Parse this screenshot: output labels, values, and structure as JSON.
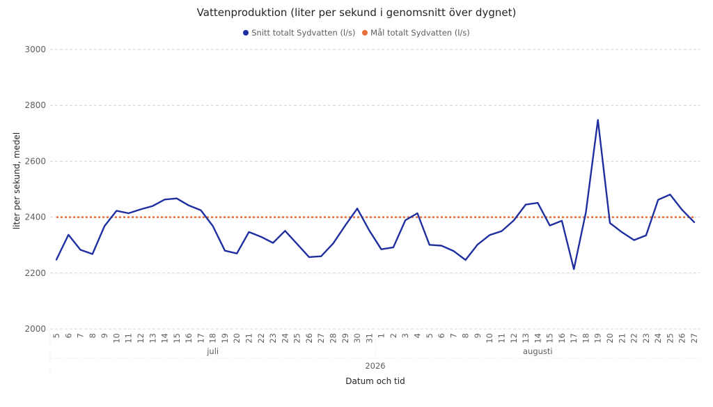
{
  "chart_data": {
    "type": "line",
    "title": "Vattenproduktion (liter per sekund i genomsnitt över dygnet)",
    "xlabel": "Datum och tid",
    "ylabel": "liter per sekund, medel",
    "ylim": [
      2000,
      3000
    ],
    "yticks": [
      "2000",
      "2200",
      "2400",
      "2600",
      "2800",
      "3000"
    ],
    "grid": true,
    "legend_position": "top-center",
    "year_label": "2026",
    "months": [
      {
        "label": "juli",
        "start_index": 0,
        "end_index": 26
      },
      {
        "label": "augusti",
        "start_index": 27,
        "end_index": 53
      }
    ],
    "x": [
      "5",
      "6",
      "7",
      "8",
      "9",
      "10",
      "11",
      "12",
      "13",
      "14",
      "15",
      "16",
      "17",
      "18",
      "19",
      "20",
      "21",
      "22",
      "23",
      "24",
      "25",
      "26",
      "27",
      "28",
      "29",
      "30",
      "31",
      "1",
      "2",
      "3",
      "4",
      "5",
      "6",
      "7",
      "8",
      "9",
      "10",
      "11",
      "12",
      "13",
      "14",
      "15",
      "16",
      "17",
      "18",
      "19",
      "20",
      "21",
      "22",
      "23",
      "24",
      "25",
      "26",
      "27"
    ],
    "series": [
      {
        "name": "Snitt totalt Sydvatten (l/s)",
        "color": "#1f2fa0",
        "style": "solid",
        "values": [
          2248,
          2337,
          2283,
          2268,
          2368,
          2423,
          2414,
          2428,
          2440,
          2463,
          2467,
          2442,
          2425,
          2368,
          2280,
          2270,
          2347,
          2330,
          2308,
          2351,
          2304,
          2257,
          2260,
          2306,
          2370,
          2431,
          2352,
          2285,
          2292,
          2389,
          2414,
          2301,
          2298,
          2279,
          2247,
          2302,
          2336,
          2350,
          2388,
          2445,
          2451,
          2370,
          2387,
          2214,
          2418,
          2748,
          2379,
          2346,
          2318,
          2335,
          2462,
          2481,
          2426,
          2382
        ]
      },
      {
        "name": "Mål totalt Sydvatten (l/s)",
        "color": "#e8703a",
        "style": "dotted",
        "values": [
          2400,
          2400,
          2400,
          2400,
          2400,
          2400,
          2400,
          2400,
          2400,
          2400,
          2400,
          2400,
          2400,
          2400,
          2400,
          2400,
          2400,
          2400,
          2400,
          2400,
          2400,
          2400,
          2400,
          2400,
          2400,
          2400,
          2400,
          2400,
          2400,
          2400,
          2400,
          2400,
          2400,
          2400,
          2400,
          2400,
          2400,
          2400,
          2400,
          2400,
          2400,
          2400,
          2400,
          2400,
          2400,
          2400,
          2400,
          2400,
          2400,
          2400,
          2400,
          2400,
          2400,
          2400
        ]
      }
    ]
  }
}
